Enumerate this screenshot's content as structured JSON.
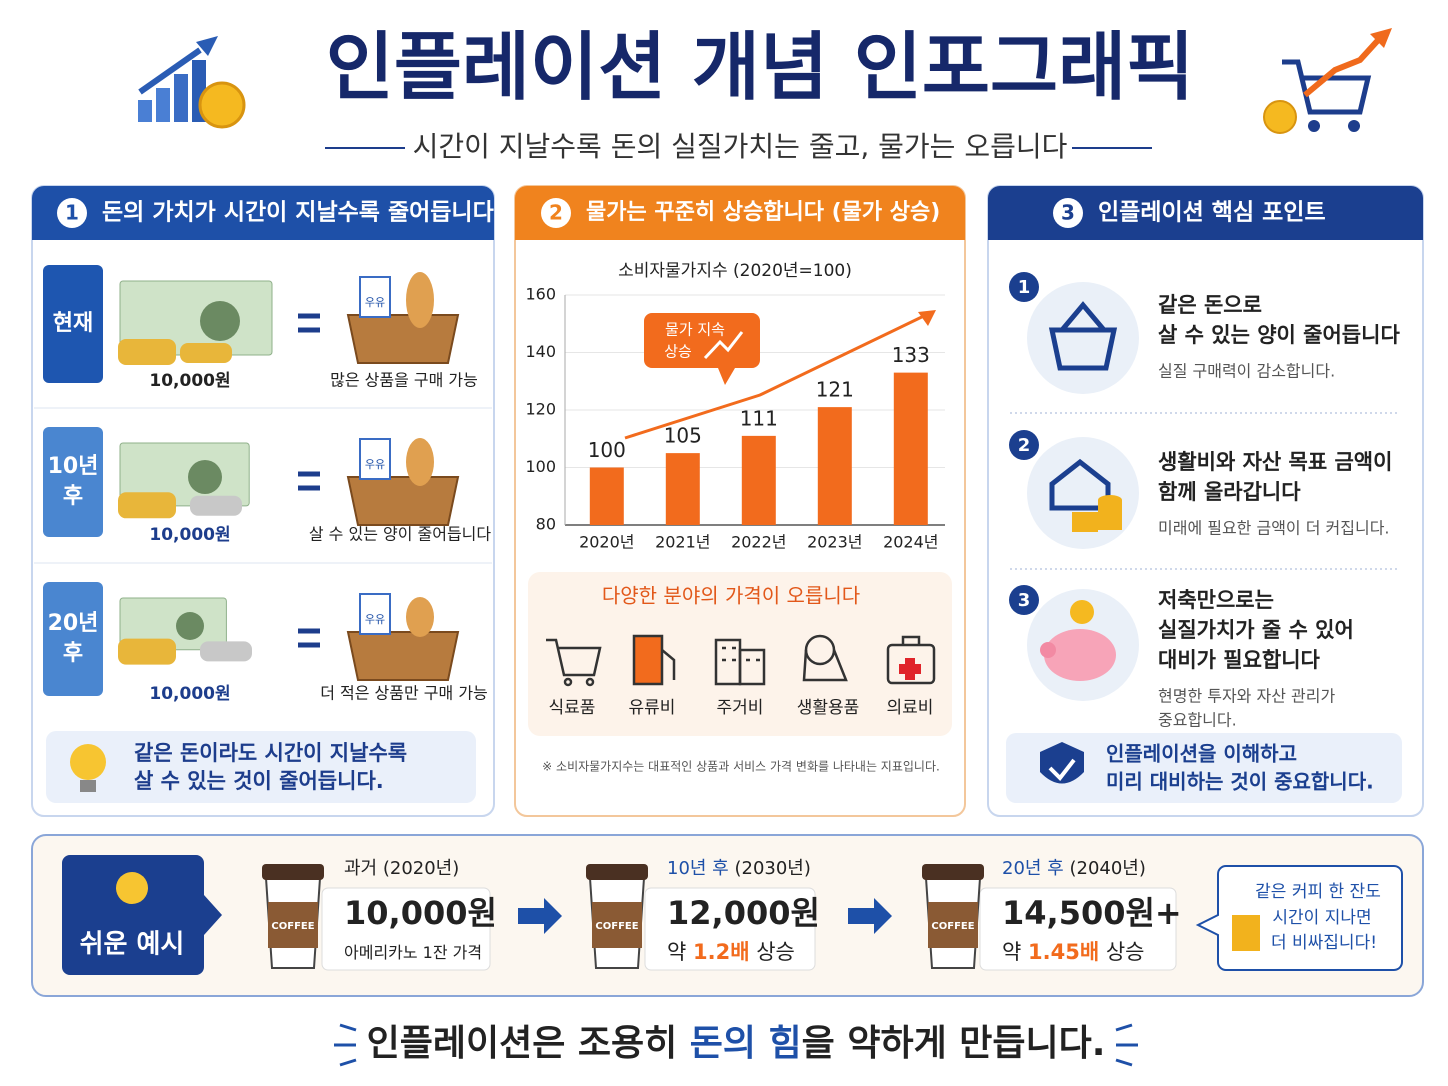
{
  "header": {
    "title": "인플레이션 개념 인포그래픽",
    "subtitle": "시간이 지날수록 돈의 실질가치는 줄고, 물가는 오릅니다"
  },
  "panel1": {
    "number": "1",
    "title": "돈의 가치가 시간이 지날수록 줄어듭니다",
    "milk_label": "우유",
    "rows": [
      {
        "period": [
          "현재"
        ],
        "amount": "10,000원",
        "result": "많은 상품을 구매 가능"
      },
      {
        "period": [
          "10년",
          "후"
        ],
        "amount": "10,000원",
        "result": "살 수 있는 양이 줄어듭니다"
      },
      {
        "period": [
          "20년",
          "후"
        ],
        "amount": "10,000원",
        "result": "더 적은 상품만 구매 가능"
      }
    ],
    "note": [
      "같은 돈이라도 시간이 지날수록",
      "살 수 있는 것이 줄어듭니다."
    ]
  },
  "panel2": {
    "number": "2",
    "title": "물가는 꾸준히 상승합니다 (물가 상승)",
    "chart": {
      "type": "bar",
      "title": "소비자물가지수 (2020년=100)",
      "categories": [
        "2020년",
        "2021년",
        "2022년",
        "2023년",
        "2024년"
      ],
      "values": [
        100,
        105,
        111,
        121,
        133
      ],
      "color": "#f26b1d",
      "ylim": [
        80,
        160
      ],
      "yticks": [
        80,
        100,
        120,
        140,
        160
      ],
      "grid": true,
      "annotation": [
        "물가 지속",
        "상승"
      ]
    },
    "sectors": {
      "title": "다양한 분야의 가격이 오릅니다",
      "items": [
        "식료품",
        "유류비",
        "주거비",
        "생활용품",
        "의료비"
      ]
    },
    "footnote": "※ 소비자물가지수는 대표적인 상품과 서비스 가격 변화를 나타내는 지표입니다."
  },
  "panel3": {
    "number": "3",
    "title": "인플레이션 핵심 포인트",
    "points": [
      {
        "number": "1",
        "title": [
          "같은 돈으로",
          "살 수 있는 양이 줄어듭니다"
        ],
        "desc": [
          "실질 구매력이 감소합니다."
        ]
      },
      {
        "number": "2",
        "title": [
          "생활비와 자산 목표 금액이",
          "함께 올라갑니다"
        ],
        "desc": [
          "미래에 필요한 금액이 더 커집니다."
        ]
      },
      {
        "number": "3",
        "title": [
          "저축만으로는",
          "실질가치가 줄 수 있어",
          "대비가 필요합니다"
        ],
        "desc": [
          "현명한 투자와 자산 관리가",
          "중요합니다."
        ]
      }
    ],
    "note": [
      "인플레이션을 이해하고",
      "미리 대비하는 것이 중요합니다."
    ]
  },
  "example": {
    "label": "쉬운 예시",
    "cup_label": "COFFEE",
    "items": [
      {
        "period": "과거",
        "year": " (2020년)",
        "price": "10,000원",
        "desc": [
          "아메리카노 1잔 가격"
        ]
      },
      {
        "period": "10년 후",
        "year": " (2030년)",
        "price": "12,000원",
        "desc": [
          "약 ",
          "1.2배",
          " 상승"
        ]
      },
      {
        "period": "20년 후",
        "year": " (2040년)",
        "price": "14,500원+",
        "desc": [
          "약 ",
          "1.45배",
          " 상승"
        ]
      }
    ],
    "bubble": [
      "같은 커피 한 잔도",
      "시간이 지나면",
      "더 비싸집니다!"
    ]
  },
  "footer": [
    "인플레이션은 조용히 ",
    "돈의 힘",
    "을 약하게 만듭니다."
  ]
}
